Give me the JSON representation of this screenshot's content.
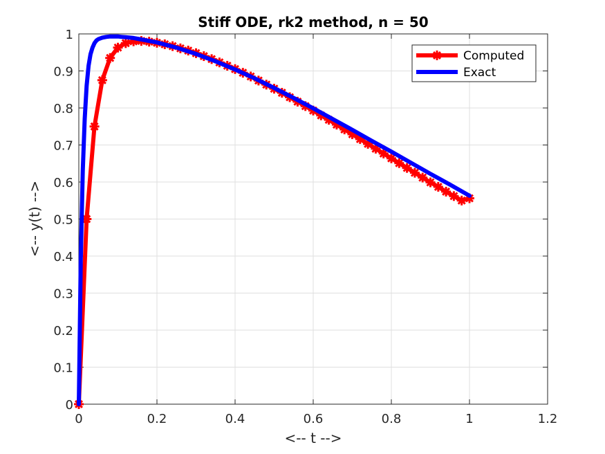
{
  "chart_data": {
    "type": "line",
    "title": "Stiff ODE, rk2 method, n = 50",
    "xlabel": "<-- t -->",
    "ylabel": "<-- y(t) -->",
    "xlim": [
      0,
      1.2
    ],
    "ylim": [
      0,
      1
    ],
    "xticks": [
      0,
      0.2,
      0.4,
      0.6,
      0.8,
      1,
      1.2
    ],
    "xtick_labels": [
      "0",
      "0.2",
      "0.4",
      "0.6",
      "0.8",
      "1",
      "1.2"
    ],
    "yticks": [
      0,
      0.1,
      0.2,
      0.3,
      0.4,
      0.5,
      0.6,
      0.7,
      0.8,
      0.9,
      1
    ],
    "ytick_labels": [
      "0",
      "0.1",
      "0.2",
      "0.3",
      "0.4",
      "0.5",
      "0.6",
      "0.7",
      "0.8",
      "0.9",
      "1"
    ],
    "grid": true,
    "legend_position": "top-right",
    "series": [
      {
        "name": "Computed",
        "color": "#ff0000",
        "marker": "asterisk",
        "x": [
          0,
          0.02,
          0.04,
          0.06,
          0.08,
          0.1,
          0.12,
          0.14,
          0.16,
          0.18,
          0.2,
          0.22,
          0.24,
          0.26,
          0.28,
          0.3,
          0.32,
          0.34,
          0.36,
          0.38,
          0.4,
          0.42,
          0.44,
          0.46,
          0.48,
          0.5,
          0.52,
          0.54,
          0.56,
          0.58,
          0.6,
          0.62,
          0.64,
          0.66,
          0.68,
          0.7,
          0.72,
          0.74,
          0.76,
          0.78,
          0.8,
          0.82,
          0.84,
          0.86,
          0.88,
          0.9,
          0.92,
          0.94,
          0.96,
          0.98,
          1
        ],
        "y": [
          0,
          0.5,
          0.75,
          0.875,
          0.935,
          0.963,
          0.975,
          0.98,
          0.981,
          0.979,
          0.976,
          0.972,
          0.967,
          0.961,
          0.955,
          0.948,
          0.94,
          0.932,
          0.923,
          0.914,
          0.905,
          0.895,
          0.885,
          0.874,
          0.863,
          0.852,
          0.841,
          0.829,
          0.817,
          0.805,
          0.793,
          0.78,
          0.768,
          0.755,
          0.742,
          0.729,
          0.716,
          0.703,
          0.69,
          0.677,
          0.664,
          0.651,
          0.638,
          0.625,
          0.612,
          0.599,
          0.587,
          0.574,
          0.562,
          0.55,
          0.556
        ]
      },
      {
        "name": "Exact",
        "color": "#0000ff",
        "x": [
          0,
          0.005,
          0.01,
          0.015,
          0.02,
          0.025,
          0.03,
          0.035,
          0.04,
          0.045,
          0.05,
          0.06,
          0.07,
          0.08,
          0.09,
          0.1,
          0.11,
          0.12,
          0.14,
          0.16,
          0.18,
          0.2,
          0.25,
          0.3,
          0.35,
          0.4,
          0.45,
          0.5,
          0.55,
          0.6,
          0.65,
          0.7,
          0.75,
          0.8,
          0.85,
          0.9,
          0.95,
          1
        ],
        "y": [
          0,
          0.39,
          0.63,
          0.77,
          0.86,
          0.914,
          0.945,
          0.963,
          0.975,
          0.982,
          0.986,
          0.99,
          0.992,
          0.993,
          0.993,
          0.993,
          0.992,
          0.991,
          0.989,
          0.985,
          0.981,
          0.977,
          0.963,
          0.946,
          0.926,
          0.904,
          0.88,
          0.854,
          0.827,
          0.799,
          0.77,
          0.741,
          0.711,
          0.682,
          0.652,
          0.622,
          0.593,
          0.563
        ]
      }
    ]
  }
}
